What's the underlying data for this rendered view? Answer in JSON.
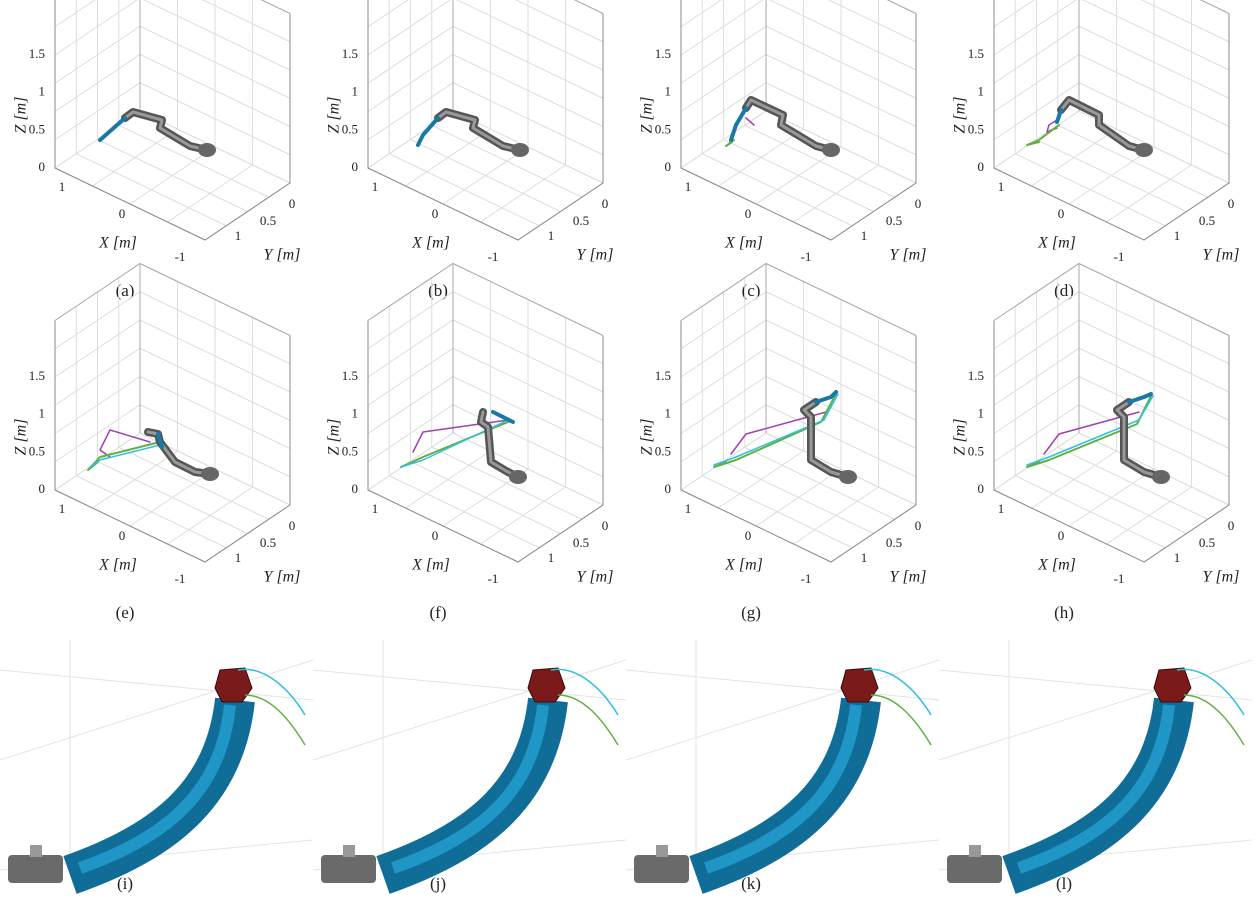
{
  "axes": {
    "x_label": "X [m]",
    "y_label": "Y [m]",
    "z_label": "Z [m]",
    "x_ticks": [
      "1",
      "0",
      "-1"
    ],
    "y_ticks": [
      "0",
      "0.5",
      "1"
    ],
    "z_ticks": [
      "0",
      "0.5",
      "1",
      "1.5"
    ]
  },
  "panels": [
    {
      "caption": "(a)"
    },
    {
      "caption": "(b)"
    },
    {
      "caption": "(c)"
    },
    {
      "caption": "(d)"
    },
    {
      "caption": "(e)"
    },
    {
      "caption": "(f)"
    },
    {
      "caption": "(g)"
    },
    {
      "caption": "(h)"
    },
    {
      "caption": "(i)"
    },
    {
      "caption": "(j)"
    },
    {
      "caption": "(k)"
    },
    {
      "caption": "(l)"
    }
  ]
}
